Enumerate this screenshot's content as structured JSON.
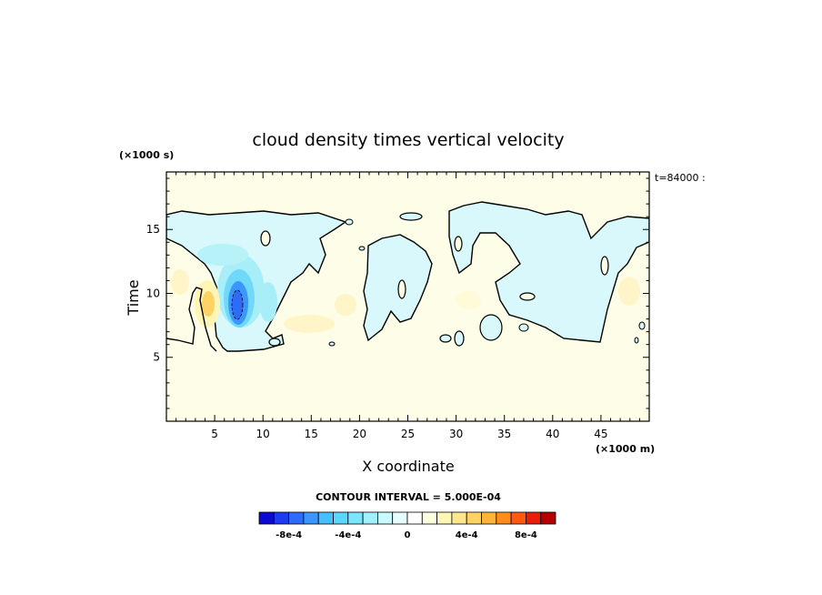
{
  "chart_data": {
    "type": "heatmap",
    "title": "cloud density times vertical velocity",
    "xlabel": "X coordinate",
    "ylabel": "Time",
    "x_unit": "(×1000 m)",
    "y_unit": "(×1000 s)",
    "time_label": "t=84000 :",
    "xlim": [
      0,
      50
    ],
    "ylim": [
      0,
      19.5
    ],
    "x_ticks": [
      "5",
      "10",
      "15",
      "20",
      "25",
      "30",
      "35",
      "40",
      "45"
    ],
    "y_ticks": [
      "5",
      "10",
      "15"
    ],
    "contour_interval": "CONTOUR INTERVAL = 5.000E-04",
    "colorbar": {
      "labels": [
        "-8e-4",
        "-4e-4",
        "0",
        "4e-4",
        "8e-4"
      ],
      "colors": [
        "#0a0ad2",
        "#1c3cf0",
        "#2e6cf8",
        "#3c96ff",
        "#46beff",
        "#5ad7ff",
        "#78e6ff",
        "#a0f0ff",
        "#c8faff",
        "#e6ffff",
        "#ffffff",
        "#ffffe0",
        "#fff5b4",
        "#ffe68c",
        "#ffd264",
        "#ffb43c",
        "#ff8c1e",
        "#ff5a0f",
        "#e61e0a",
        "#b40000"
      ]
    },
    "background_color": "#fdfde8"
  }
}
